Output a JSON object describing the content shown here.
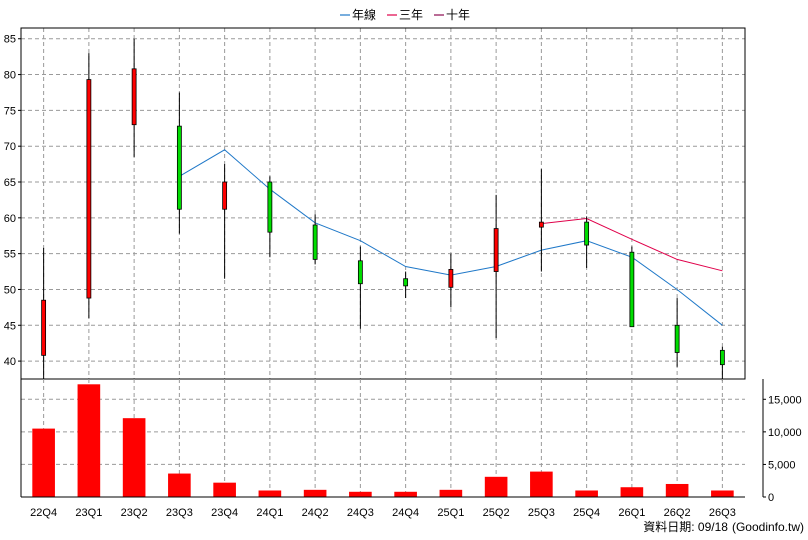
{
  "chart_data": {
    "type": "candlestick",
    "categories": [
      "22Q4",
      "23Q1",
      "23Q2",
      "23Q3",
      "23Q4",
      "24Q1",
      "24Q2",
      "24Q3",
      "24Q4",
      "25Q1",
      "25Q2",
      "25Q3",
      "25Q4",
      "26Q1",
      "26Q2",
      "26Q3"
    ],
    "ohlc": [
      {
        "open": 40.8,
        "high": 55.8,
        "low": 37.5,
        "close": 48.5
      },
      {
        "open": 48.8,
        "high": 83.0,
        "low": 46.0,
        "close": 79.3
      },
      {
        "open": 73.0,
        "high": 85.0,
        "low": 68.5,
        "close": 80.8
      },
      {
        "open": 72.8,
        "high": 77.5,
        "low": 57.8,
        "close": 61.2
      },
      {
        "open": 61.2,
        "high": 67.5,
        "low": 51.5,
        "close": 65.0
      },
      {
        "open": 65.0,
        "high": 65.8,
        "low": 54.5,
        "close": 58.0
      },
      {
        "open": 59.0,
        "high": 60.5,
        "low": 53.5,
        "close": 54.2
      },
      {
        "open": 54.0,
        "high": 56.0,
        "low": 44.5,
        "close": 50.8
      },
      {
        "open": 51.5,
        "high": 52.5,
        "low": 48.8,
        "close": 50.5
      },
      {
        "open": 50.3,
        "high": 55.0,
        "low": 47.5,
        "close": 52.8
      },
      {
        "open": 52.5,
        "high": 63.2,
        "low": 43.2,
        "close": 58.5
      },
      {
        "open": 58.7,
        "high": 66.8,
        "low": 52.5,
        "close": 59.4
      },
      {
        "open": 59.4,
        "high": 60.2,
        "low": 53.0,
        "close": 56.2
      },
      {
        "open": 55.2,
        "high": 56.0,
        "low": 44.8,
        "close": 44.8
      },
      {
        "open": 45.0,
        "high": 48.8,
        "low": 39.2,
        "close": 41.2
      },
      {
        "open": 41.5,
        "high": 42.0,
        "low": 37.2,
        "close": 39.5
      }
    ],
    "lines": [
      {
        "name": "年線",
        "color": "#1f78c8",
        "values": [
          null,
          null,
          null,
          65.8,
          69.5,
          64.0,
          59.3,
          56.8,
          53.2,
          52.0,
          53.2,
          55.5,
          56.8,
          54.5,
          50.0,
          45.0
        ]
      },
      {
        "name": "三年",
        "color": "#e0004a",
        "values": [
          null,
          null,
          null,
          null,
          null,
          null,
          null,
          null,
          null,
          null,
          null,
          59.2,
          59.9,
          57.0,
          54.2,
          52.6
        ]
      },
      {
        "name": "十年",
        "color": "#8b0a50",
        "values": []
      }
    ],
    "volume": [
      10500,
      17300,
      12100,
      3600,
      2200,
      1000,
      1100,
      800,
      800,
      1100,
      3100,
      3900,
      1000,
      1500,
      2000,
      1000
    ],
    "price_axis": {
      "min": 37.5,
      "max": 86.5,
      "ticks": [
        40,
        45,
        50,
        55,
        60,
        65,
        70,
        75,
        80,
        85
      ]
    },
    "volume_axis": {
      "min": 0,
      "max": 17500,
      "ticks": [
        0,
        5000,
        10000,
        15000
      ],
      "tick_labels": [
        "0",
        "5,000",
        "10,000",
        "15,000"
      ]
    },
    "grid": true,
    "legend_position": "top-center",
    "up_color": "#ff0000",
    "down_color": "#00dd00",
    "volume_color": "#ff0000"
  },
  "footer": {
    "label": "資料日期: 09/18",
    "source": "(Goodinfo.tw)"
  }
}
